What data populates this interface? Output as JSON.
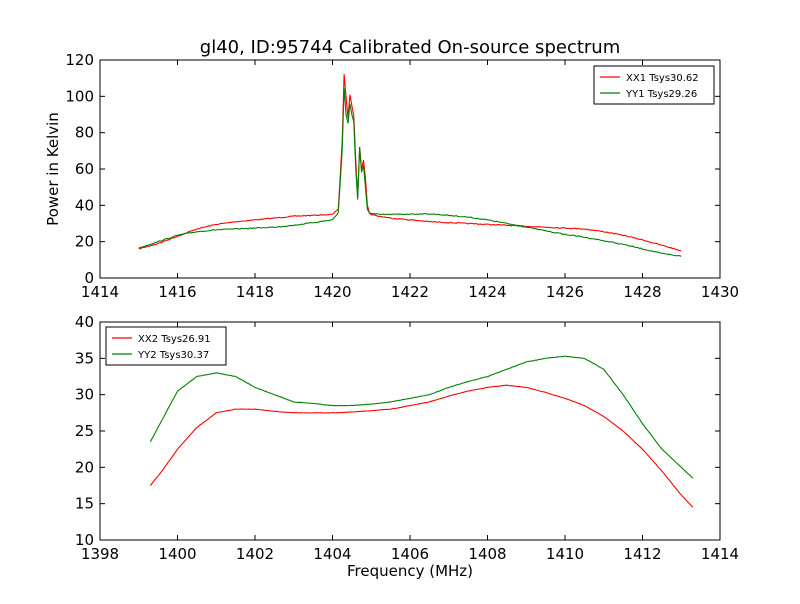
{
  "title": "gl40, ID:95744 Calibrated On-source spectrum",
  "colors": {
    "xx": "#ff0000",
    "yy": "#008000",
    "axes": "#000000",
    "background": "#ffffff"
  },
  "chart_data": [
    {
      "type": "line",
      "title": "gl40, ID:95744 Calibrated On-source spectrum",
      "xlabel": "",
      "ylabel": "Power in Kelvin",
      "xlim": [
        1414,
        1430
      ],
      "ylim": [
        0,
        120
      ],
      "xticks": [
        "1414",
        "1416",
        "1418",
        "1420",
        "1422",
        "1424",
        "1426",
        "1428",
        "1430"
      ],
      "yticks": [
        "0",
        "20",
        "40",
        "60",
        "80",
        "100",
        "120"
      ],
      "legend_position": "top-right",
      "grid": false,
      "series": [
        {
          "name": "XX1 Tsys30.62",
          "color": "#ff0000",
          "x": [
            1415.0,
            1415.5,
            1416.0,
            1416.5,
            1417.0,
            1417.5,
            1418.0,
            1418.5,
            1419.0,
            1419.5,
            1420.0,
            1420.15,
            1420.25,
            1420.3,
            1420.35,
            1420.4,
            1420.45,
            1420.5,
            1420.55,
            1420.6,
            1420.65,
            1420.7,
            1420.75,
            1420.8,
            1420.85,
            1420.9,
            1420.95,
            1421.0,
            1421.2,
            1421.5,
            1422.0,
            1422.5,
            1423.0,
            1423.5,
            1424.0,
            1424.5,
            1425.0,
            1425.5,
            1426.0,
            1426.5,
            1427.0,
            1427.5,
            1428.0,
            1428.5,
            1429.0
          ],
          "values": [
            16.0,
            19.0,
            23.0,
            27.0,
            29.5,
            31.0,
            32.0,
            33.0,
            34.0,
            34.5,
            35.0,
            38,
            75,
            112,
            100,
            88,
            101,
            95,
            89,
            65,
            45,
            72,
            60,
            65,
            55,
            40,
            36,
            35,
            34,
            33,
            32,
            31,
            30.5,
            30,
            29.5,
            29,
            28.5,
            28,
            27.5,
            27,
            25.5,
            23.5,
            21,
            18,
            15
          ]
        },
        {
          "name": "YY1 Tsys29.26",
          "color": "#008000",
          "x": [
            1415.0,
            1415.5,
            1416.0,
            1416.5,
            1417.0,
            1417.5,
            1418.0,
            1418.5,
            1419.0,
            1419.5,
            1420.0,
            1420.15,
            1420.25,
            1420.3,
            1420.35,
            1420.4,
            1420.45,
            1420.5,
            1420.55,
            1420.6,
            1420.65,
            1420.7,
            1420.75,
            1420.8,
            1420.85,
            1420.9,
            1420.95,
            1421.0,
            1421.2,
            1421.5,
            1422.0,
            1422.5,
            1423.0,
            1423.5,
            1424.0,
            1424.5,
            1425.0,
            1425.5,
            1426.0,
            1426.5,
            1427.0,
            1427.5,
            1428.0,
            1428.5,
            1429.0
          ],
          "values": [
            16.5,
            20.0,
            23.5,
            25.5,
            26.5,
            27.0,
            27.5,
            28.0,
            29.0,
            30.5,
            32.0,
            36,
            70,
            105,
            90,
            85,
            96,
            90,
            86,
            60,
            43,
            72,
            58,
            62,
            50,
            38,
            36,
            35.5,
            35,
            35,
            35.2,
            35.3,
            34.5,
            33.5,
            32,
            30,
            28,
            26,
            24,
            22.5,
            20.5,
            18.5,
            16,
            13.5,
            12
          ]
        }
      ]
    },
    {
      "type": "line",
      "title": "",
      "xlabel": "Frequency (MHz)",
      "ylabel": "",
      "xlim": [
        1398,
        1414
      ],
      "ylim": [
        10,
        40
      ],
      "xticks": [
        "1398",
        "1400",
        "1402",
        "1404",
        "1406",
        "1408",
        "1410",
        "1412",
        "1414"
      ],
      "yticks": [
        "10",
        "15",
        "20",
        "25",
        "30",
        "35",
        "40"
      ],
      "legend_position": "top-left",
      "grid": false,
      "series": [
        {
          "name": "XX2 Tsys26.91",
          "color": "#ff0000",
          "x": [
            1399.3,
            1399.6,
            1400.0,
            1400.5,
            1401.0,
            1401.5,
            1402.0,
            1402.5,
            1403.0,
            1403.5,
            1404.0,
            1404.5,
            1405.0,
            1405.5,
            1406.0,
            1406.5,
            1407.0,
            1407.5,
            1408.0,
            1408.5,
            1409.0,
            1409.5,
            1410.0,
            1410.5,
            1411.0,
            1411.5,
            1412.0,
            1412.5,
            1413.0,
            1413.3
          ],
          "values": [
            17.5,
            19.5,
            22.5,
            25.5,
            27.5,
            28.0,
            28.0,
            27.7,
            27.5,
            27.5,
            27.5,
            27.6,
            27.8,
            28.0,
            28.5,
            29.0,
            29.8,
            30.5,
            31.0,
            31.3,
            31.0,
            30.3,
            29.5,
            28.5,
            27.0,
            25.0,
            22.5,
            19.5,
            16.2,
            14.5
          ]
        },
        {
          "name": "YY2 Tsys30.37",
          "color": "#008000",
          "x": [
            1399.3,
            1399.6,
            1400.0,
            1400.5,
            1401.0,
            1401.5,
            1402.0,
            1402.5,
            1403.0,
            1403.5,
            1404.0,
            1404.5,
            1405.0,
            1405.5,
            1406.0,
            1406.5,
            1407.0,
            1407.5,
            1408.0,
            1408.5,
            1409.0,
            1409.5,
            1410.0,
            1410.5,
            1411.0,
            1411.5,
            1412.0,
            1412.5,
            1413.0,
            1413.3
          ],
          "values": [
            23.5,
            26.5,
            30.5,
            32.5,
            33.0,
            32.5,
            31.0,
            30.0,
            29.0,
            28.8,
            28.5,
            28.5,
            28.7,
            29.0,
            29.5,
            30.0,
            31.0,
            31.8,
            32.5,
            33.5,
            34.5,
            35.0,
            35.3,
            35.0,
            33.5,
            30.0,
            26.0,
            22.5,
            20.0,
            18.5
          ]
        }
      ]
    }
  ]
}
